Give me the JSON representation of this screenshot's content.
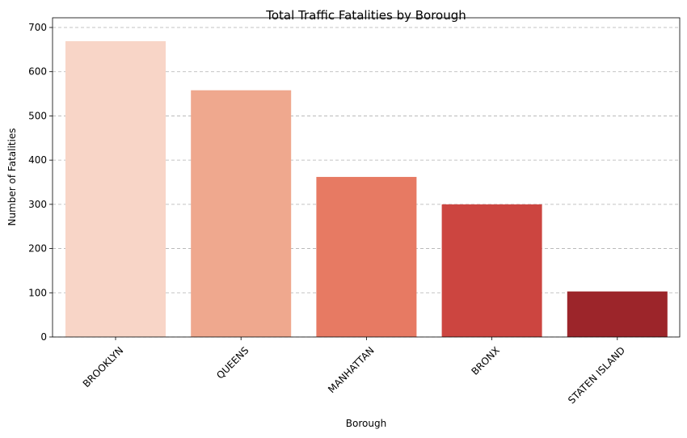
{
  "chart_data": {
    "type": "bar",
    "title": "Total Traffic Fatalities by Borough",
    "xlabel": "Borough",
    "ylabel": "Number of Fatalities",
    "categories": [
      "BROOKLYN",
      "QUEENS",
      "MANHATTAN",
      "BRONX",
      "STATEN ISLAND"
    ],
    "values": [
      669,
      558,
      362,
      300,
      103
    ],
    "colors": [
      "#f8d5c7",
      "#efa88e",
      "#e77a63",
      "#cc4540",
      "#9c252a"
    ],
    "ylim": [
      0,
      700
    ],
    "yticks": [
      0,
      100,
      200,
      300,
      400,
      500,
      600,
      700
    ],
    "grid": "y-dashed",
    "legend": "none"
  }
}
